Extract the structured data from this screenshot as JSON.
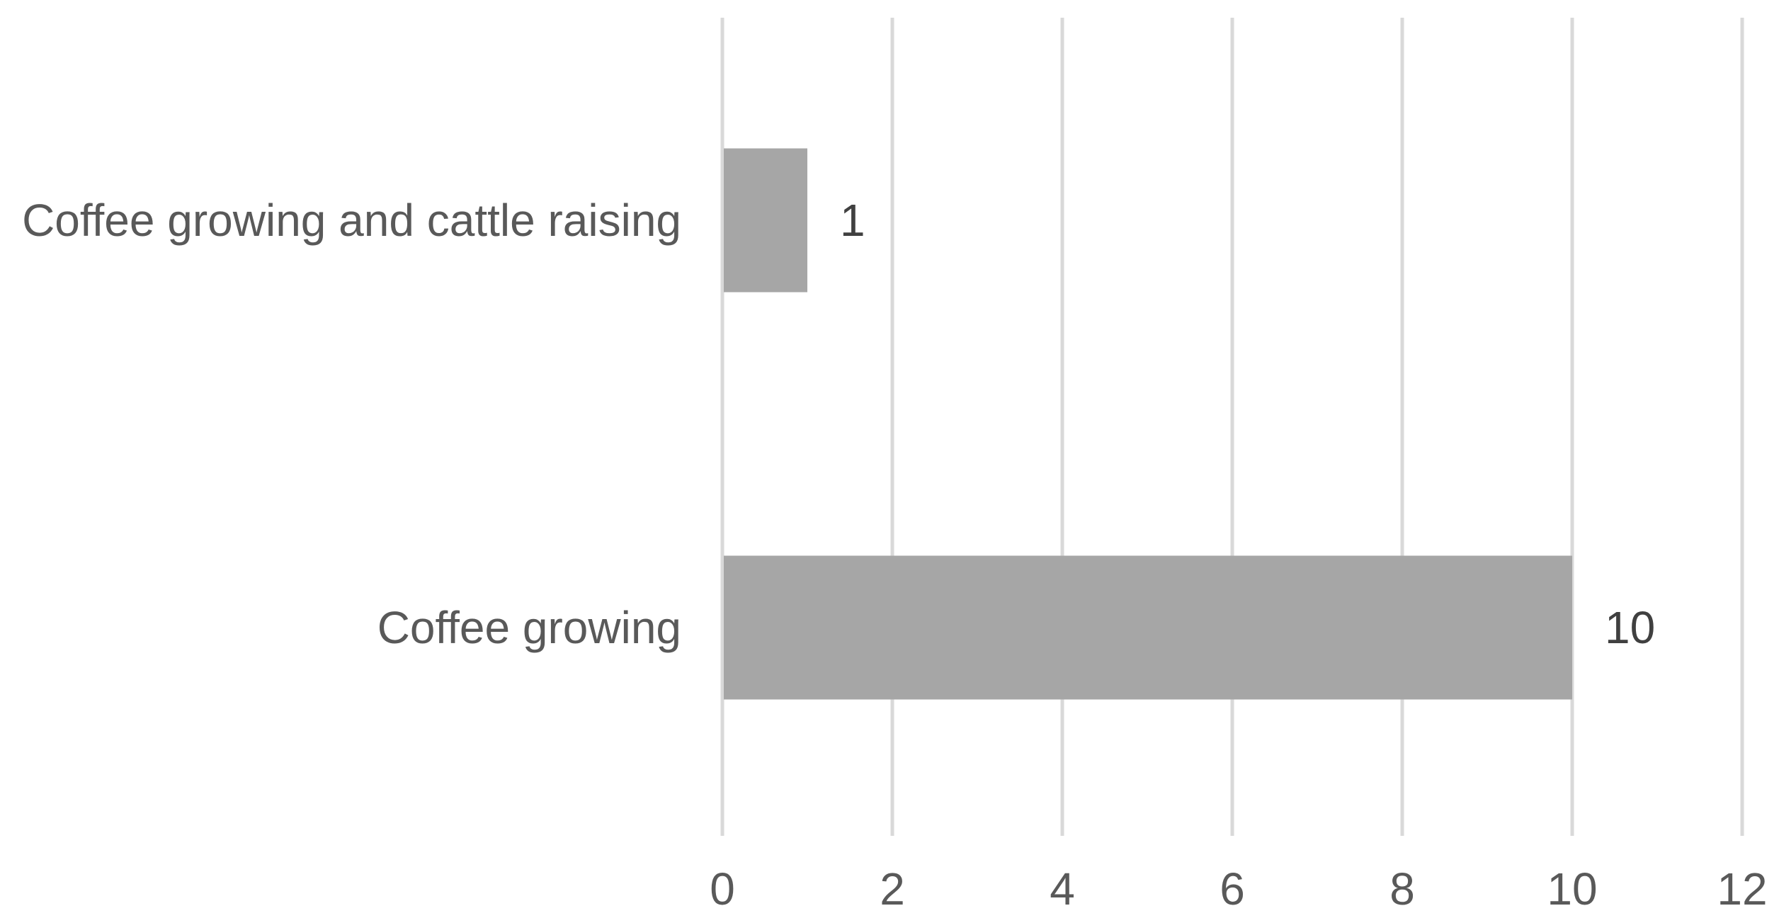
{
  "chart_data": {
    "type": "bar",
    "orientation": "horizontal",
    "categories": [
      "Coffee growing and cattle raising",
      "Coffee growing"
    ],
    "values": [
      1,
      10
    ],
    "data_labels": [
      "1",
      "10"
    ],
    "title": "",
    "xlabel": "",
    "ylabel": "",
    "xlim": [
      0,
      12
    ],
    "x_ticks": [
      0,
      2,
      4,
      6,
      8,
      10,
      12
    ],
    "x_tick_labels": [
      "0",
      "2",
      "4",
      "6",
      "8",
      "10",
      "12"
    ],
    "grid": "vertical",
    "legend": "none",
    "colors": {
      "bar": "#a6a6a6",
      "grid": "#d9d9d9",
      "text": "#595959",
      "data_label": "#404040",
      "background": "#ffffff"
    }
  }
}
